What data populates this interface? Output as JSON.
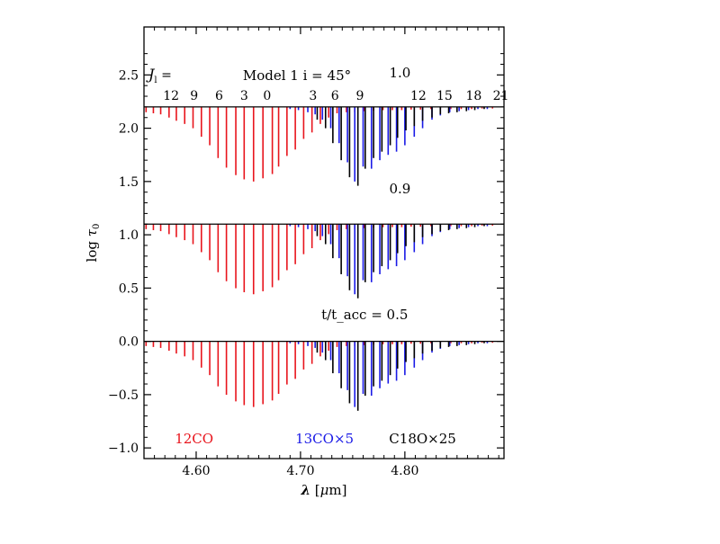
{
  "chart_data": {
    "type": "line",
    "title": "Model 1 i = 45°",
    "xlabel": "λ [μm]",
    "ylabel": "log τ0",
    "xlim": [
      4.55,
      4.895
    ],
    "ylim": [
      -1.1,
      2.95
    ],
    "x_ticks": [
      {
        "value": 4.6,
        "label": "4.60"
      },
      {
        "value": 4.7,
        "label": "4.70"
      },
      {
        "value": 4.8,
        "label": "4.80"
      }
    ],
    "y_ticks": [
      {
        "value": -1.0,
        "label": "−1.0"
      },
      {
        "value": -0.5,
        "label": "−0.5"
      },
      {
        "value": 0.0,
        "label": "0.0"
      },
      {
        "value": 0.5,
        "label": "0.5"
      },
      {
        "value": 1.0,
        "label": "1.0"
      },
      {
        "value": 1.5,
        "label": "1.5"
      },
      {
        "value": 2.0,
        "label": "2.0"
      },
      {
        "value": 2.5,
        "label": "2.5"
      }
    ],
    "jl_prefix": "J_l =",
    "jl_labels": [
      {
        "label": "12",
        "x": 4.576
      },
      {
        "label": "9",
        "x": 4.598
      },
      {
        "label": "6",
        "x": 4.622
      },
      {
        "label": "3",
        "x": 4.646
      },
      {
        "label": "0",
        "x": 4.668
      },
      {
        "label": "3",
        "x": 4.712
      },
      {
        "label": "6",
        "x": 4.733
      },
      {
        "label": "9",
        "x": 4.757
      },
      {
        "label": "12",
        "x": 4.813
      },
      {
        "label": "15",
        "x": 4.838
      },
      {
        "label": "18",
        "x": 4.866
      },
      {
        "label": "21",
        "x": 4.892
      }
    ],
    "panels": [
      {
        "t_label": "1.0",
        "baseline": 2.2,
        "label_x": 4.785,
        "label_y": 2.52
      },
      {
        "t_label": "0.9",
        "baseline": 1.1,
        "label_x": 4.785,
        "label_y": 1.43
      },
      {
        "t_label": "t/t_acc = 0.5",
        "baseline": 0.0,
        "label_x": 4.72,
        "label_y": 0.25
      }
    ],
    "series": [
      {
        "name": "12CO",
        "color": "#e8141c",
        "x": [
          4.552,
          4.559,
          4.566,
          4.574,
          4.581,
          4.589,
          4.597,
          4.605,
          4.613,
          4.621,
          4.629,
          4.638,
          4.646,
          4.655,
          4.664,
          4.673,
          4.679,
          4.687,
          4.695,
          4.703,
          4.711,
          4.719,
          4.727,
          4.735,
          4.744,
          4.752,
          4.761,
          4.77,
          4.779,
          4.788,
          4.797,
          4.806,
          4.815,
          4.825,
          4.834,
          4.844,
          4.854,
          4.864,
          4.874,
          4.884
        ],
        "depth": [
          0.05,
          0.06,
          0.07,
          0.1,
          0.13,
          0.16,
          0.2,
          0.28,
          0.36,
          0.48,
          0.57,
          0.64,
          0.68,
          0.7,
          0.67,
          0.63,
          0.56,
          0.46,
          0.4,
          0.3,
          0.24,
          0.16,
          0.1,
          0.06,
          0.05,
          0.05,
          0.04,
          0.035,
          0.03,
          0.03,
          0.03,
          0.025,
          0.025,
          0.02,
          0.02,
          0.02,
          0.02,
          0.02,
          0.015,
          0.015
        ]
      },
      {
        "name": "13CO×5",
        "color": "#1a1ae6",
        "x": [
          4.69,
          4.698,
          4.707,
          4.714,
          4.721,
          4.729,
          4.737,
          4.745,
          4.752,
          4.76,
          4.768,
          4.776,
          4.784,
          4.792,
          4.8,
          4.809,
          4.817,
          4.826,
          4.834,
          4.843,
          4.852,
          4.861,
          4.87,
          4.879
        ],
        "depth": [
          0.02,
          0.03,
          0.05,
          0.07,
          0.12,
          0.2,
          0.34,
          0.52,
          0.7,
          0.56,
          0.58,
          0.5,
          0.45,
          0.42,
          0.36,
          0.28,
          0.2,
          0.12,
          0.08,
          0.05,
          0.04,
          0.03,
          0.02,
          0.02
        ]
      },
      {
        "name": "C18O×25",
        "color": "#000000",
        "x": [
          4.716,
          4.724,
          4.731,
          4.739,
          4.747,
          4.755,
          4.762,
          4.77,
          4.778,
          4.786,
          4.793,
          4.801,
          4.809,
          4.817,
          4.826,
          4.834,
          4.842,
          4.85,
          4.859,
          4.867,
          4.876
        ],
        "depth": [
          0.12,
          0.2,
          0.34,
          0.5,
          0.66,
          0.74,
          0.58,
          0.48,
          0.42,
          0.36,
          0.29,
          0.22,
          0.18,
          0.13,
          0.1,
          0.07,
          0.06,
          0.05,
          0.04,
          0.03,
          0.02
        ]
      }
    ],
    "legend": [
      {
        "label": "12CO",
        "color": "#e8141c",
        "x": 4.598
      },
      {
        "label": "13CO×5",
        "color": "#1a1ae6",
        "x": 4.723
      },
      {
        "label": "C18O×25",
        "color": "#000000",
        "x": 4.817
      }
    ]
  }
}
